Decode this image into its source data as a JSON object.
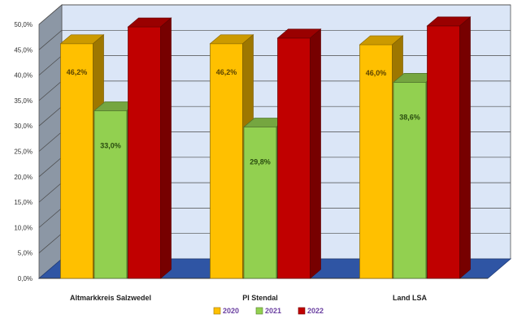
{
  "chart_data": {
    "type": "bar",
    "categories": [
      "Altmarkkreis Salzwedel",
      "PI Stendal",
      "Land LSA"
    ],
    "series": [
      {
        "name": "2020",
        "color": "#FFC000",
        "values": [
          46.2,
          46.2,
          46.0
        ],
        "labels": [
          "46,2%",
          "46,2%",
          "46,0%"
        ]
      },
      {
        "name": "2021",
        "color": "#92D050",
        "values": [
          33.0,
          29.8,
          38.6
        ],
        "labels": [
          "33,0%",
          "29,8%",
          "38,6%"
        ]
      },
      {
        "name": "2022",
        "color": "#C00000",
        "values": [
          49.5,
          47.3,
          49.7
        ],
        "labels": [
          "",
          "",
          ""
        ]
      }
    ],
    "y_ticks": [
      "0,0%",
      "5,0%",
      "10,0%",
      "15,0%",
      "20,0%",
      "25,0%",
      "30,0%",
      "35,0%",
      "40,0%",
      "45,0%",
      "50,0%"
    ],
    "ylim": [
      0,
      50
    ],
    "grid": true,
    "legend_position": "bottom",
    "title": "",
    "xlabel": "",
    "ylabel": ""
  }
}
